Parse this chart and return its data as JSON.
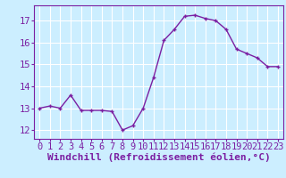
{
  "x": [
    0,
    1,
    2,
    3,
    4,
    5,
    6,
    7,
    8,
    9,
    10,
    11,
    12,
    13,
    14,
    15,
    16,
    17,
    18,
    19,
    20,
    21,
    22,
    23
  ],
  "y": [
    13.0,
    13.1,
    13.0,
    13.6,
    12.9,
    12.9,
    12.9,
    12.85,
    12.0,
    12.2,
    13.0,
    14.4,
    16.1,
    16.6,
    17.2,
    17.25,
    17.1,
    17.0,
    16.6,
    15.7,
    15.5,
    15.3,
    14.9,
    14.9
  ],
  "line_color": "#7B1FA2",
  "marker": "+",
  "marker_color": "#7B1FA2",
  "bg_color": "#cceeff",
  "grid_color": "#ffffff",
  "tick_color": "#7B1FA2",
  "xlabel": "Windchill (Refroidissement éolien,°C)",
  "xlabel_color": "#7B1FA2",
  "ylim": [
    11.6,
    17.7
  ],
  "xlim": [
    -0.5,
    23.5
  ],
  "yticks": [
    12,
    13,
    14,
    15,
    16,
    17
  ],
  "xticks": [
    0,
    1,
    2,
    3,
    4,
    5,
    6,
    7,
    8,
    9,
    10,
    11,
    12,
    13,
    14,
    15,
    16,
    17,
    18,
    19,
    20,
    21,
    22,
    23
  ],
  "font_size": 7.5,
  "label_font_size": 8,
  "line_width": 1.0,
  "marker_size": 3.5
}
